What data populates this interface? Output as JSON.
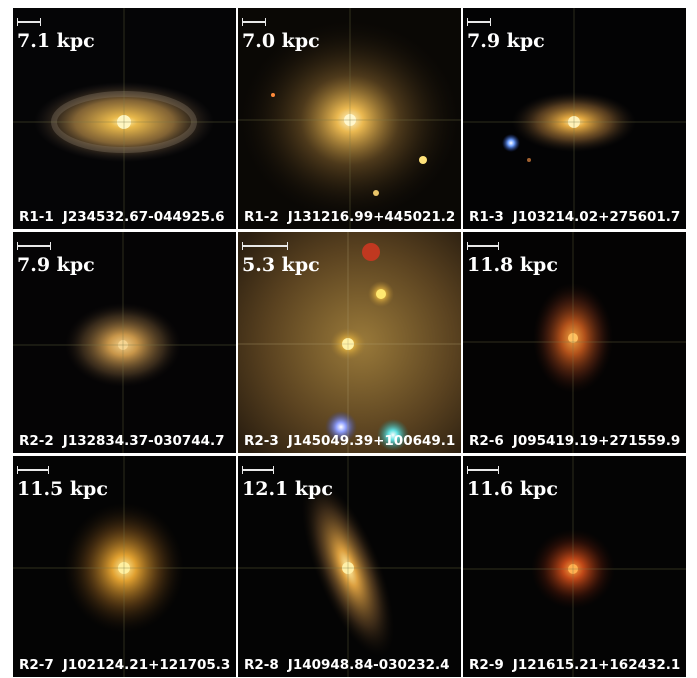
{
  "panels": [
    {
      "id": "R1-1",
      "name": "J234532.67-044925.6",
      "scale": "7.1 kpc",
      "bg": "#050506",
      "galaxy": {
        "color": "#d9a640",
        "shape": "disk"
      }
    },
    {
      "id": "R1-2",
      "name": "J131216.99+445021.2",
      "scale": "7.0 kpc",
      "bg": "#0a0805",
      "galaxy": {
        "color": "#d6a645",
        "shape": "elliptical"
      }
    },
    {
      "id": "R1-3",
      "name": "J103214.02+275601.7",
      "scale": "7.9 kpc",
      "bg": "#030304",
      "galaxy": {
        "color": "#d9a23e",
        "shape": "edge"
      }
    },
    {
      "id": "R2-2",
      "name": "J132834.37-030744.7",
      "scale": "7.9 kpc",
      "bg": "#050405",
      "galaxy": {
        "color": "#cc9a44",
        "shape": "diffuse"
      }
    },
    {
      "id": "R2-3",
      "name": "J145049.39+100649.1",
      "scale": "5.3 kpc",
      "bg": "#3a2a14",
      "galaxy": {
        "color": "#d8a53c",
        "shape": "field"
      }
    },
    {
      "id": "R2-6",
      "name": "J095419.19+271559.9",
      "scale": "11.8 kpc",
      "bg": "#040303",
      "galaxy": {
        "color": "#d0702a",
        "shape": "red"
      }
    },
    {
      "id": "R2-7",
      "name": "J102124.21+121705.3",
      "scale": "11.5 kpc",
      "bg": "#040404",
      "galaxy": {
        "color": "#d6a035",
        "shape": "round"
      }
    },
    {
      "id": "R2-8",
      "name": "J140948.84-030232.4",
      "scale": "12.1 kpc",
      "bg": "#040404",
      "galaxy": {
        "color": "#d29c3a",
        "shape": "tilted"
      }
    },
    {
      "id": "R2-9",
      "name": "J121615.21+162432.1",
      "scale": "11.6 kpc",
      "bg": "#040404",
      "galaxy": {
        "color": "#cf5e2a",
        "shape": "redsmall"
      }
    }
  ]
}
